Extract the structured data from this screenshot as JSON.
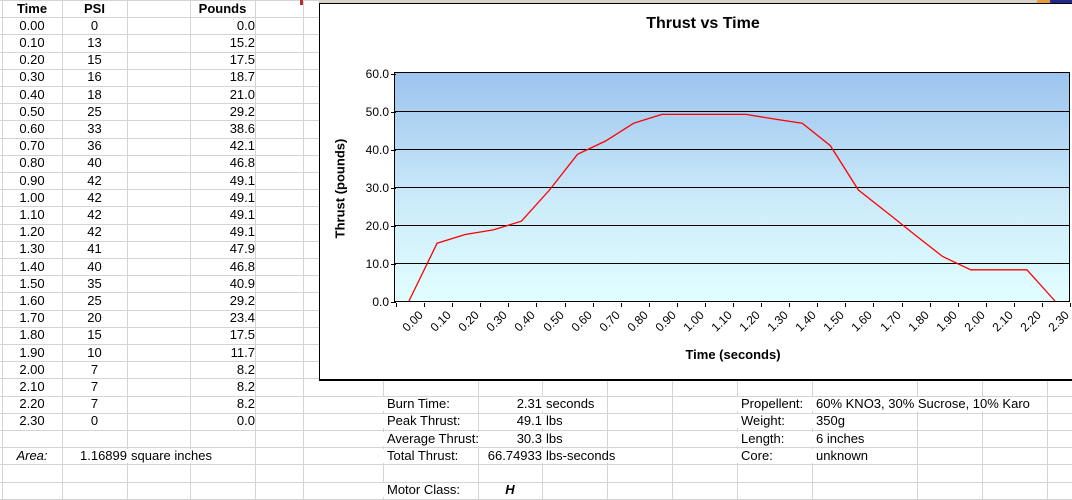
{
  "table": {
    "headers": [
      "Time",
      "PSI",
      "Pounds"
    ],
    "rows": [
      {
        "time": "0.00",
        "psi": "0",
        "pounds": "0.0"
      },
      {
        "time": "0.10",
        "psi": "13",
        "pounds": "15.2"
      },
      {
        "time": "0.20",
        "psi": "15",
        "pounds": "17.5"
      },
      {
        "time": "0.30",
        "psi": "16",
        "pounds": "18.7"
      },
      {
        "time": "0.40",
        "psi": "18",
        "pounds": "21.0"
      },
      {
        "time": "0.50",
        "psi": "25",
        "pounds": "29.2"
      },
      {
        "time": "0.60",
        "psi": "33",
        "pounds": "38.6"
      },
      {
        "time": "0.70",
        "psi": "36",
        "pounds": "42.1"
      },
      {
        "time": "0.80",
        "psi": "40",
        "pounds": "46.8"
      },
      {
        "time": "0.90",
        "psi": "42",
        "pounds": "49.1"
      },
      {
        "time": "1.00",
        "psi": "42",
        "pounds": "49.1"
      },
      {
        "time": "1.10",
        "psi": "42",
        "pounds": "49.1"
      },
      {
        "time": "1.20",
        "psi": "42",
        "pounds": "49.1"
      },
      {
        "time": "1.30",
        "psi": "41",
        "pounds": "47.9"
      },
      {
        "time": "1.40",
        "psi": "40",
        "pounds": "46.8"
      },
      {
        "time": "1.50",
        "psi": "35",
        "pounds": "40.9"
      },
      {
        "time": "1.60",
        "psi": "25",
        "pounds": "29.2"
      },
      {
        "time": "1.70",
        "psi": "20",
        "pounds": "23.4"
      },
      {
        "time": "1.80",
        "psi": "15",
        "pounds": "17.5"
      },
      {
        "time": "1.90",
        "psi": "10",
        "pounds": "11.7"
      },
      {
        "time": "2.00",
        "psi": "7",
        "pounds": "8.2"
      },
      {
        "time": "2.10",
        "psi": "7",
        "pounds": "8.2"
      },
      {
        "time": "2.20",
        "psi": "7",
        "pounds": "8.2"
      },
      {
        "time": "2.30",
        "psi": "0",
        "pounds": "0.0"
      }
    ],
    "area_label": "Area:",
    "area_value": "1.16899",
    "area_unit": "square inches"
  },
  "summary": {
    "items": [
      {
        "label": "Burn Time:",
        "value": "2.31",
        "unit": "seconds"
      },
      {
        "label": "Peak Thrust:",
        "value": "49.1",
        "unit": "lbs"
      },
      {
        "label": "Average Thrust:",
        "value": "30.3",
        "unit": "lbs"
      },
      {
        "label": "Total Thrust:",
        "value": "66.74933",
        "unit": "lbs-seconds"
      }
    ],
    "motor_class_label": "Motor Class:",
    "motor_class_value": "H"
  },
  "motor_info": {
    "items": [
      {
        "label": "Propellent:",
        "value": "60% KNO3, 30% Sucrose, 10% Karo"
      },
      {
        "label": "Weight:",
        "value": "350g"
      },
      {
        "label": "Length:",
        "value": "6 inches"
      },
      {
        "label": "Core:",
        "value": "unknown"
      }
    ]
  },
  "chart_data": {
    "type": "line",
    "title": "Thrust vs Time",
    "xlabel": "Time (seconds)",
    "ylabel": "Thrust (pounds)",
    "categories": [
      "0.00",
      "0.10",
      "0.20",
      "0.30",
      "0.40",
      "0.50",
      "0.60",
      "0.70",
      "0.80",
      "0.90",
      "1.00",
      "1.10",
      "1.20",
      "1.30",
      "1.40",
      "1.50",
      "1.60",
      "1.70",
      "1.80",
      "1.90",
      "2.00",
      "2.10",
      "2.20",
      "2.30"
    ],
    "values": [
      0.0,
      15.2,
      17.5,
      18.7,
      21.0,
      29.2,
      38.6,
      42.1,
      46.8,
      49.1,
      49.1,
      49.1,
      49.1,
      47.9,
      46.8,
      40.9,
      29.2,
      23.4,
      17.5,
      11.7,
      8.2,
      8.2,
      8.2,
      0.0
    ],
    "ylim": [
      0,
      60
    ],
    "ytick_interval": 10,
    "ytick_labels": [
      "0.0",
      "10.0",
      "20.0",
      "30.0",
      "40.0",
      "50.0",
      "60.0"
    ],
    "grid": true,
    "legend_position": "none",
    "line_color": "#ff0000",
    "plot_gradient_top": "#9cc4ee",
    "plot_gradient_mid": "#cdecfa",
    "plot_gradient_bottom": "#e2feff"
  }
}
